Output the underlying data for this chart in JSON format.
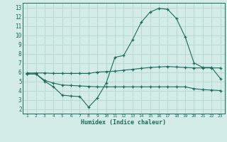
{
  "x": [
    1,
    2,
    3,
    4,
    5,
    6,
    7,
    8,
    9,
    10,
    11,
    12,
    13,
    14,
    15,
    16,
    17,
    18,
    19,
    20,
    21,
    22,
    23
  ],
  "line1": [
    5.9,
    5.9,
    5.9,
    5.85,
    5.85,
    5.85,
    5.85,
    5.85,
    6.0,
    6.05,
    6.1,
    6.2,
    6.3,
    6.4,
    6.5,
    6.55,
    6.6,
    6.55,
    6.5,
    6.45,
    6.45,
    6.45,
    6.45
  ],
  "line2": [
    5.8,
    5.8,
    5.0,
    4.4,
    3.5,
    3.4,
    3.35,
    2.2,
    3.2,
    4.8,
    7.6,
    7.8,
    9.5,
    11.4,
    12.5,
    12.9,
    12.8,
    11.8,
    9.8,
    7.0,
    6.5,
    6.5,
    5.3
  ],
  "line3": [
    5.8,
    5.8,
    5.1,
    4.8,
    4.6,
    4.55,
    4.5,
    4.45,
    4.4,
    4.4,
    4.4,
    4.4,
    4.4,
    4.4,
    4.4,
    4.4,
    4.4,
    4.4,
    4.4,
    4.2,
    4.1,
    4.05,
    4.0
  ],
  "line_color": "#1a6b5a",
  "bg_color": "#d4ece8",
  "grid_color": "#b8d8d2",
  "xlabel": "Humidex (Indice chaleur)",
  "ylim": [
    1.5,
    13.5
  ],
  "xlim": [
    0.5,
    23.5
  ],
  "yticks": [
    2,
    3,
    4,
    5,
    6,
    7,
    8,
    9,
    10,
    11,
    12,
    13
  ],
  "xticks": [
    1,
    2,
    3,
    4,
    5,
    6,
    7,
    8,
    9,
    10,
    11,
    12,
    13,
    14,
    15,
    16,
    17,
    18,
    19,
    20,
    21,
    22,
    23
  ]
}
